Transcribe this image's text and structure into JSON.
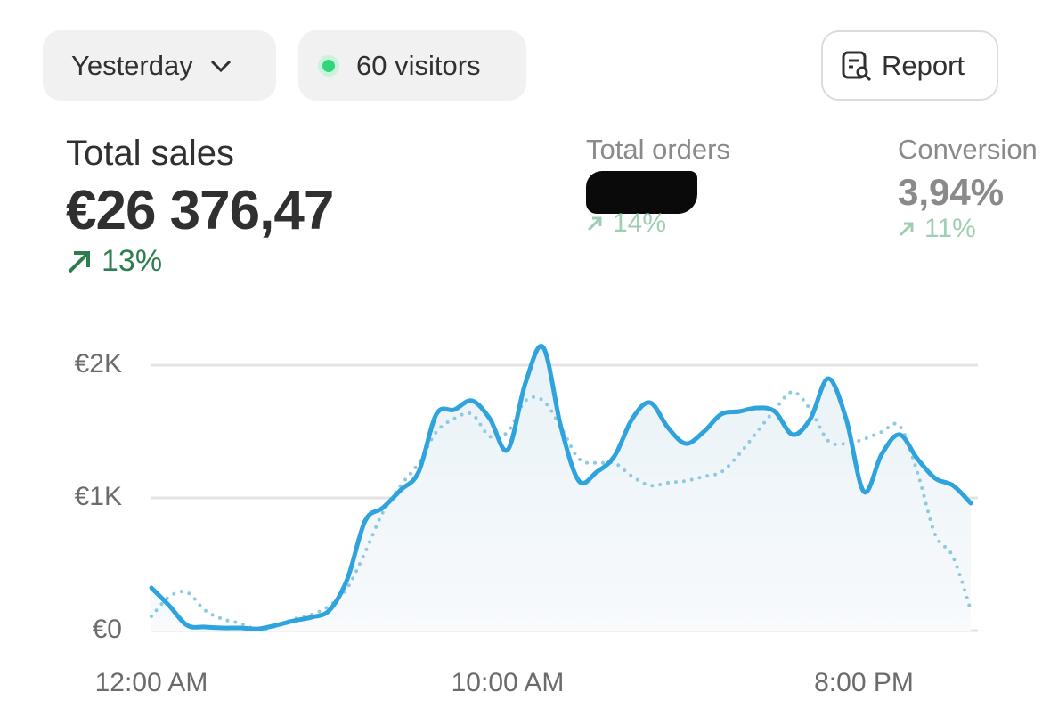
{
  "header": {
    "date_range": "Yesterday",
    "visitors": "60 visitors",
    "report": "Report"
  },
  "metrics": [
    {
      "label": "Total sales",
      "value": "€26 376,47",
      "change": "13%"
    },
    {
      "label": "Total orders",
      "change": "14%"
    },
    {
      "label": "Conversion",
      "value": "3,94%",
      "change": "11%"
    }
  ],
  "chart_data": {
    "type": "line",
    "x": [
      0,
      0.5,
      1,
      1.5,
      2,
      2.5,
      3,
      3.5,
      4,
      4.5,
      5,
      5.5,
      6,
      6.5,
      7,
      7.5,
      8,
      8.5,
      9,
      9.5,
      10,
      10.5,
      11,
      11.5,
      12,
      12.5,
      13,
      13.5,
      14,
      14.5,
      15,
      15.5,
      16,
      16.5,
      17,
      17.5,
      18,
      18.5,
      19,
      19.5,
      20,
      20.5,
      21,
      21.5,
      22,
      22.5,
      23
    ],
    "xlim": [
      0,
      23.2
    ],
    "xticks": [
      {
        "value": 0,
        "label": "12:00 AM"
      },
      {
        "value": 10,
        "label": "10:00 AM"
      },
      {
        "value": 20,
        "label": "8:00 PM"
      }
    ],
    "ylim": [
      0,
      2200
    ],
    "yticks": [
      {
        "value": 0,
        "label": "€0"
      },
      {
        "value": 1000,
        "label": "€1K"
      },
      {
        "value": 2000,
        "label": "€2K"
      }
    ],
    "grid": true,
    "series": [
      {
        "color": "#2ea3dd",
        "area": true,
        "values": [
          322,
          188,
          40,
          27,
          20,
          20,
          13,
          40,
          74,
          101,
          154,
          389,
          826,
          926,
          1060,
          1195,
          1631,
          1664,
          1732,
          1597,
          1362,
          1866,
          2134,
          1530,
          1128,
          1195,
          1315,
          1597,
          1718,
          1530,
          1409,
          1497,
          1631,
          1651,
          1678,
          1651,
          1477,
          1597,
          1899,
          1597,
          1047,
          1329,
          1477,
          1295,
          1148,
          1094,
          960
        ]
      },
      {
        "color": "#8ec9e2",
        "line_style": "dotted",
        "values": [
          107,
          255,
          289,
          154,
          87,
          54,
          7,
          34,
          87,
          121,
          188,
          322,
          591,
          893,
          1094,
          1262,
          1497,
          1597,
          1631,
          1463,
          1497,
          1732,
          1732,
          1530,
          1295,
          1262,
          1262,
          1161,
          1094,
          1114,
          1128,
          1161,
          1195,
          1329,
          1497,
          1664,
          1799,
          1664,
          1430,
          1409,
          1443,
          1497,
          1544,
          1195,
          725,
          557,
          154
        ]
      }
    ]
  }
}
